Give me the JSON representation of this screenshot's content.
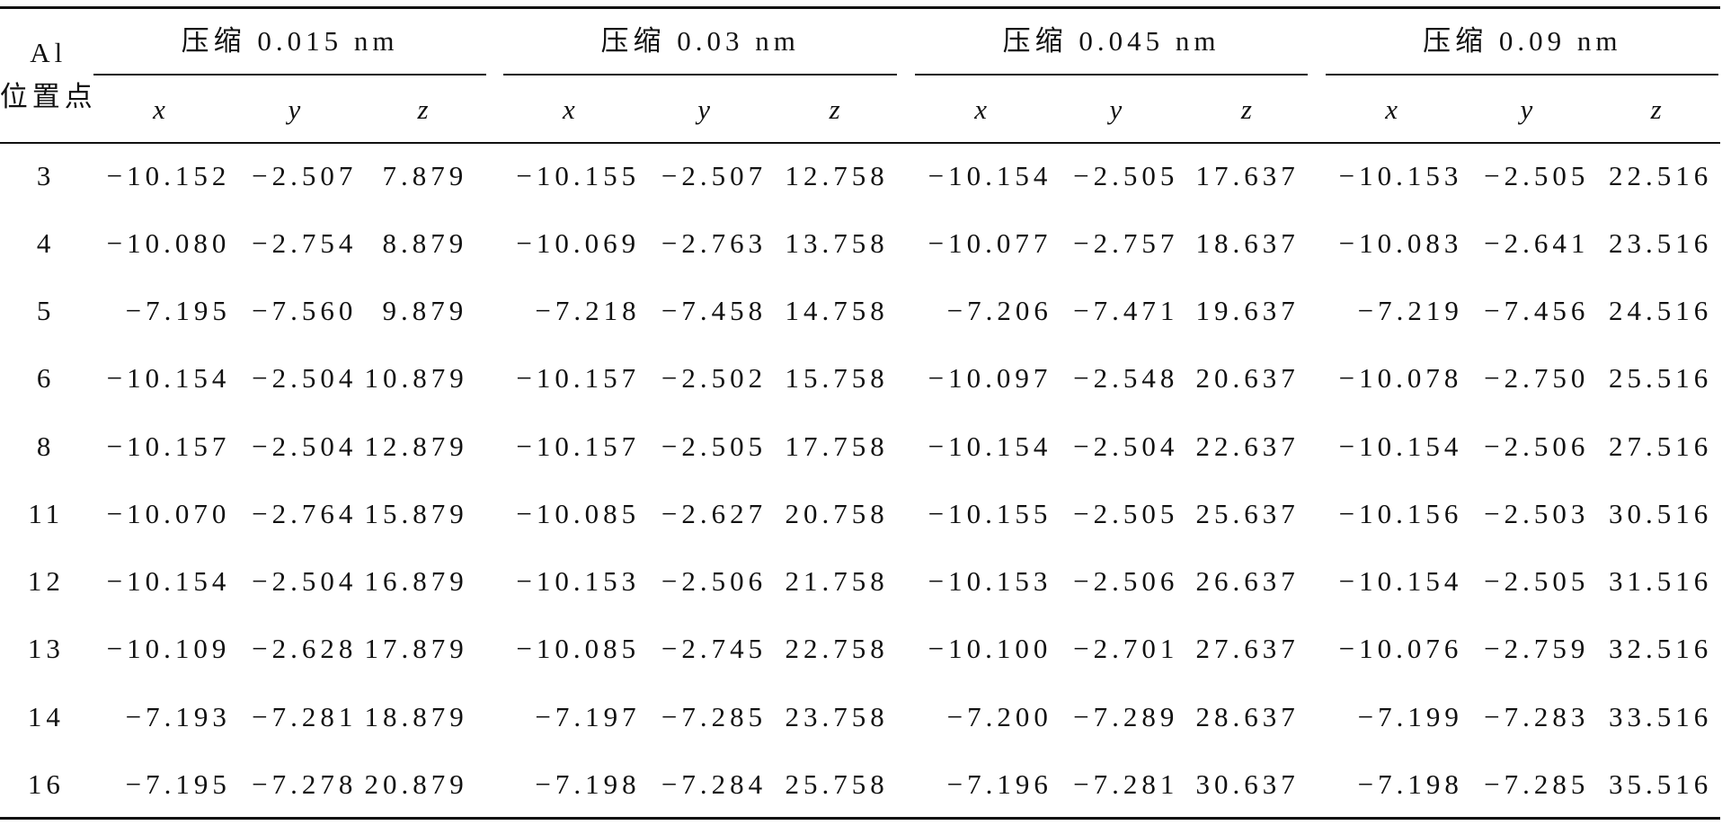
{
  "header": {
    "row_label_lines": [
      "Al",
      "位置点"
    ],
    "groups": [
      "压缩 0.015 nm",
      "压缩 0.03 nm",
      "压缩 0.045 nm",
      "压缩 0.09 nm"
    ],
    "axes": [
      "x",
      "y",
      "z"
    ]
  },
  "table": {
    "rows": [
      [
        "3",
        "−10.152",
        "−2.507",
        "7.879",
        "−10.155",
        "−2.507",
        "12.758",
        "−10.154",
        "−2.505",
        "17.637",
        "−10.153",
        "−2.505",
        "22.516"
      ],
      [
        "4",
        "−10.080",
        "−2.754",
        "8.879",
        "−10.069",
        "−2.763",
        "13.758",
        "−10.077",
        "−2.757",
        "18.637",
        "−10.083",
        "−2.641",
        "23.516"
      ],
      [
        "5",
        "−7.195",
        "−7.560",
        "9.879",
        "−7.218",
        "−7.458",
        "14.758",
        "−7.206",
        "−7.471",
        "19.637",
        "−7.219",
        "−7.456",
        "24.516"
      ],
      [
        "6",
        "−10.154",
        "−2.504",
        "10.879",
        "−10.157",
        "−2.502",
        "15.758",
        "−10.097",
        "−2.548",
        "20.637",
        "−10.078",
        "−2.750",
        "25.516"
      ],
      [
        "8",
        "−10.157",
        "−2.504",
        "12.879",
        "−10.157",
        "−2.505",
        "17.758",
        "−10.154",
        "−2.504",
        "22.637",
        "−10.154",
        "−2.506",
        "27.516"
      ],
      [
        "11",
        "−10.070",
        "−2.764",
        "15.879",
        "−10.085",
        "−2.627",
        "20.758",
        "−10.155",
        "−2.505",
        "25.637",
        "−10.156",
        "−2.503",
        "30.516"
      ],
      [
        "12",
        "−10.154",
        "−2.504",
        "16.879",
        "−10.153",
        "−2.506",
        "21.758",
        "−10.153",
        "−2.506",
        "26.637",
        "−10.154",
        "−2.505",
        "31.516"
      ],
      [
        "13",
        "−10.109",
        "−2.628",
        "17.879",
        "−10.085",
        "−2.745",
        "22.758",
        "−10.100",
        "−2.701",
        "27.637",
        "−10.076",
        "−2.759",
        "32.516"
      ],
      [
        "14",
        "−7.193",
        "−7.281",
        "18.879",
        "−7.197",
        "−7.285",
        "23.758",
        "−7.200",
        "−7.289",
        "28.637",
        "−7.199",
        "−7.283",
        "33.516"
      ],
      [
        "16",
        "−7.195",
        "−7.278",
        "20.879",
        "−7.198",
        "−7.284",
        "25.758",
        "−7.196",
        "−7.281",
        "30.637",
        "−7.198",
        "−7.285",
        "35.516"
      ]
    ]
  }
}
